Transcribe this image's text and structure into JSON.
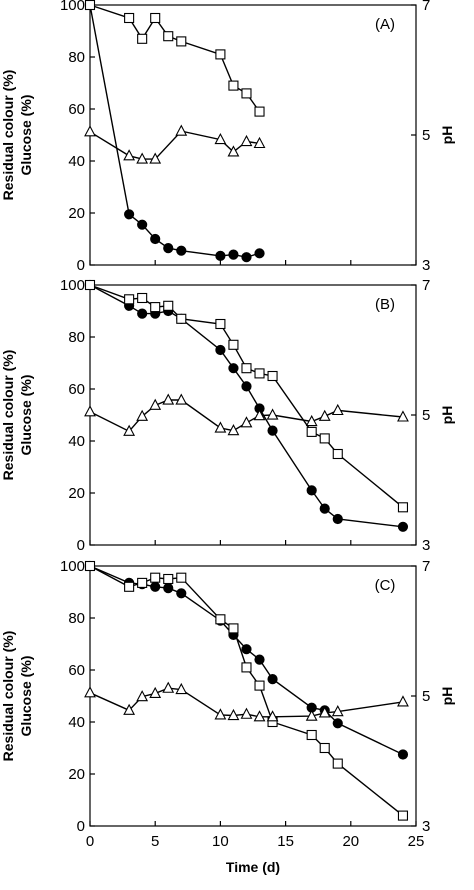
{
  "chart_data": [
    {
      "type": "line",
      "panel_label": "(A)",
      "ylabel_left_line1": "Residual colour (%)",
      "ylabel_left_line2": "Glucose (%)",
      "ylabel_right": "pH",
      "xlabel": "",
      "xlim": [
        0,
        25
      ],
      "ylim_left": [
        0,
        100
      ],
      "ylim_right": [
        3,
        7
      ],
      "yticks_left": [
        "0",
        "20",
        "40",
        "60",
        "80",
        "100"
      ],
      "yticks_right": [
        "3",
        "5",
        "7"
      ],
      "xticks": [],
      "series": [
        {
          "marker": "filled-circle",
          "axis": "left",
          "x": [
            0,
            3,
            4,
            5,
            6,
            7,
            10,
            11,
            12,
            13
          ],
          "y": [
            100,
            19.5,
            15.5,
            10,
            6.5,
            5.5,
            3.5,
            4,
            3,
            4.5
          ]
        },
        {
          "marker": "open-square",
          "axis": "left",
          "x": [
            0,
            3,
            4,
            5,
            6,
            7,
            10,
            11,
            12,
            13
          ],
          "y": [
            100,
            95,
            87,
            95,
            88,
            86,
            81,
            69,
            66,
            59
          ]
        },
        {
          "marker": "open-triangle",
          "axis": "right",
          "x": [
            0,
            3,
            4,
            5,
            7,
            10,
            11,
            12,
            13
          ],
          "y": [
            5.05,
            4.68,
            4.63,
            4.63,
            5.06,
            4.93,
            4.74,
            4.9,
            4.87
          ]
        }
      ]
    },
    {
      "type": "line",
      "panel_label": "(B)",
      "ylabel_left_line1": "Residual colour (%)",
      "ylabel_left_line2": "Glucose (%)",
      "ylabel_right": "pH",
      "xlabel": "",
      "xlim": [
        0,
        25
      ],
      "ylim_left": [
        0,
        100
      ],
      "ylim_right": [
        3,
        7
      ],
      "yticks_left": [
        "0",
        "20",
        "40",
        "60",
        "80",
        "100"
      ],
      "yticks_right": [
        "3",
        "5",
        "7"
      ],
      "xticks": [],
      "series": [
        {
          "marker": "filled-circle",
          "axis": "left",
          "x": [
            0,
            3,
            4,
            5,
            6,
            7,
            10,
            11,
            12,
            13,
            14,
            17,
            18,
            19,
            24
          ],
          "y": [
            100,
            92,
            89,
            89,
            90,
            87,
            75,
            68,
            61,
            52.5,
            44,
            21,
            14,
            10,
            7
          ]
        },
        {
          "marker": "open-square",
          "axis": "left",
          "x": [
            0,
            3,
            4,
            5,
            6,
            7,
            10,
            11,
            12,
            13,
            14,
            17,
            18,
            19,
            24
          ],
          "y": [
            100,
            94.5,
            95,
            91.5,
            92,
            87,
            85,
            77,
            68,
            66,
            65,
            43.5,
            41,
            35,
            14.5
          ]
        },
        {
          "marker": "open-triangle",
          "axis": "right",
          "x": [
            0,
            3,
            4,
            5,
            6,
            7,
            10,
            11,
            12,
            13,
            14,
            17,
            18,
            19,
            24
          ],
          "y": [
            5.05,
            4.75,
            4.98,
            5.15,
            5.23,
            5.23,
            4.8,
            4.76,
            4.88,
            4.99,
            5.0,
            4.9,
            4.98,
            5.07,
            4.97
          ]
        }
      ]
    },
    {
      "type": "line",
      "panel_label": "(C)",
      "ylabel_left_line1": "Residual colour (%)",
      "ylabel_left_line2": "Glucose (%)",
      "ylabel_right": "pH",
      "xlabel": "Time (d)",
      "xlim": [
        0,
        25
      ],
      "ylim_left": [
        0,
        100
      ],
      "ylim_right": [
        3,
        7
      ],
      "yticks_left": [
        "0",
        "20",
        "40",
        "60",
        "80",
        "100"
      ],
      "yticks_right": [
        "3",
        "5",
        "7"
      ],
      "xticks": [
        "0",
        "5",
        "10",
        "15",
        "20",
        "25"
      ],
      "series": [
        {
          "marker": "filled-circle",
          "axis": "left",
          "x": [
            0,
            3,
            4,
            5,
            6,
            7,
            10,
            11,
            12,
            13,
            14,
            17,
            18,
            19,
            24
          ],
          "y": [
            100,
            93.5,
            93,
            92,
            91.5,
            89.5,
            79,
            73.5,
            68,
            64,
            56.5,
            45.5,
            44.5,
            39.5,
            27.5
          ]
        },
        {
          "marker": "open-square",
          "axis": "left",
          "x": [
            0,
            3,
            4,
            5,
            6,
            7,
            10,
            11,
            12,
            13,
            14,
            17,
            18,
            19,
            24
          ],
          "y": [
            100,
            92,
            93.5,
            95.5,
            95,
            95.5,
            79.5,
            76,
            61,
            54,
            40,
            35,
            30,
            24,
            4
          ]
        },
        {
          "marker": "open-triangle",
          "axis": "right",
          "x": [
            0,
            3,
            4,
            5,
            6,
            7,
            10,
            11,
            12,
            13,
            14,
            17,
            18,
            19,
            24
          ],
          "y": [
            5.05,
            4.78,
            4.99,
            5.04,
            5.12,
            5.1,
            4.71,
            4.7,
            4.72,
            4.68,
            4.68,
            4.69,
            4.74,
            4.76,
            4.91
          ]
        }
      ]
    }
  ]
}
